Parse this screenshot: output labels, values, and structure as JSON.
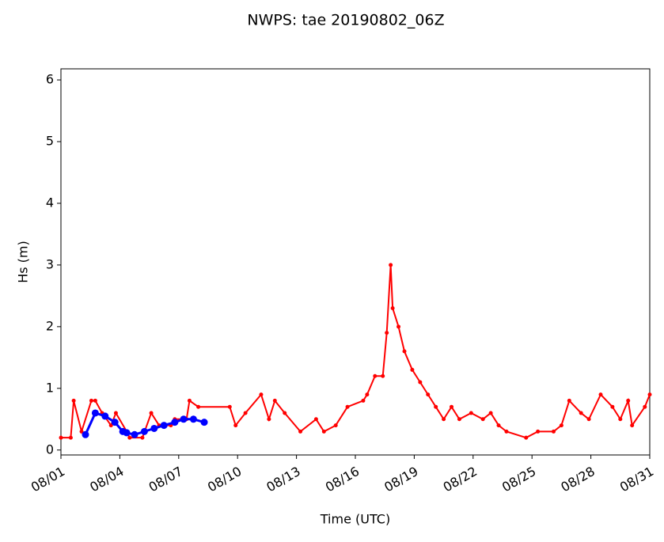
{
  "chart_data": {
    "type": "line",
    "title": "NWPS: tae 20190802_06Z",
    "xlabel": "Time (UTC)",
    "ylabel": "Hs (m)",
    "xlim": [
      1,
      31
    ],
    "ylim": [
      -0.08,
      6.18
    ],
    "xticks": [
      {
        "value": 1,
        "label": "08/01"
      },
      {
        "value": 4,
        "label": "08/04"
      },
      {
        "value": 7,
        "label": "08/07"
      },
      {
        "value": 10,
        "label": "08/10"
      },
      {
        "value": 13,
        "label": "08/13"
      },
      {
        "value": 16,
        "label": "08/16"
      },
      {
        "value": 19,
        "label": "08/19"
      },
      {
        "value": 22,
        "label": "08/22"
      },
      {
        "value": 25,
        "label": "08/25"
      },
      {
        "value": 28,
        "label": "08/28"
      },
      {
        "value": 31,
        "label": "08/31"
      }
    ],
    "yticks": [
      0,
      1,
      2,
      3,
      4,
      5,
      6
    ],
    "series": [
      {
        "color": "#ff0000",
        "x": [
          1,
          1.5,
          1.65,
          2.05,
          2.55,
          2.75,
          3.1,
          3.55,
          3.8,
          4.35,
          4.5,
          5.15,
          5.6,
          6.0,
          6.6,
          6.8,
          7.4,
          7.55,
          8.0,
          9.6,
          9.9,
          10.4,
          11.2,
          11.6,
          11.9,
          12.4,
          13.2,
          14.0,
          14.4,
          15.0,
          15.6,
          16.4,
          16.6,
          17.0,
          17.4,
          17.6,
          17.8,
          17.9,
          18.2,
          18.5,
          18.9,
          19.3,
          19.7,
          20.1,
          20.5,
          20.9,
          21.3,
          21.9,
          22.5,
          22.9,
          23.3,
          23.7,
          24.7,
          25.3,
          26.1,
          26.5,
          26.9,
          27.5,
          27.9,
          28.5,
          29.1,
          29.5,
          29.9,
          30.1,
          30.75,
          31
        ],
        "values": [
          0.2,
          0.2,
          0.8,
          0.3,
          0.8,
          0.8,
          0.6,
          0.4,
          0.6,
          0.3,
          0.2,
          0.2,
          0.6,
          0.4,
          0.4,
          0.5,
          0.5,
          0.8,
          0.7,
          0.7,
          0.4,
          0.6,
          0.9,
          0.5,
          0.8,
          0.6,
          0.3,
          0.5,
          0.3,
          0.4,
          0.7,
          0.8,
          0.9,
          1.2,
          1.2,
          1.9,
          3.0,
          2.3,
          2.0,
          1.6,
          1.3,
          1.1,
          0.9,
          0.7,
          0.5,
          0.7,
          0.5,
          0.6,
          0.5,
          0.6,
          0.4,
          0.3,
          0.2,
          0.3,
          0.3,
          0.4,
          0.8,
          0.6,
          0.5,
          0.9,
          0.7,
          0.5,
          0.8,
          0.4,
          0.7,
          0.9
        ]
      },
      {
        "color": "#0000ff",
        "x": [
          2.25,
          2.75,
          3.25,
          3.75,
          4.15,
          4.35,
          4.75,
          5.25,
          5.75,
          6.25,
          6.8,
          7.25,
          7.75,
          8.3
        ],
        "values": [
          0.25,
          0.6,
          0.55,
          0.45,
          0.3,
          0.28,
          0.25,
          0.3,
          0.35,
          0.4,
          0.45,
          0.5,
          0.5,
          0.45
        ]
      }
    ]
  }
}
